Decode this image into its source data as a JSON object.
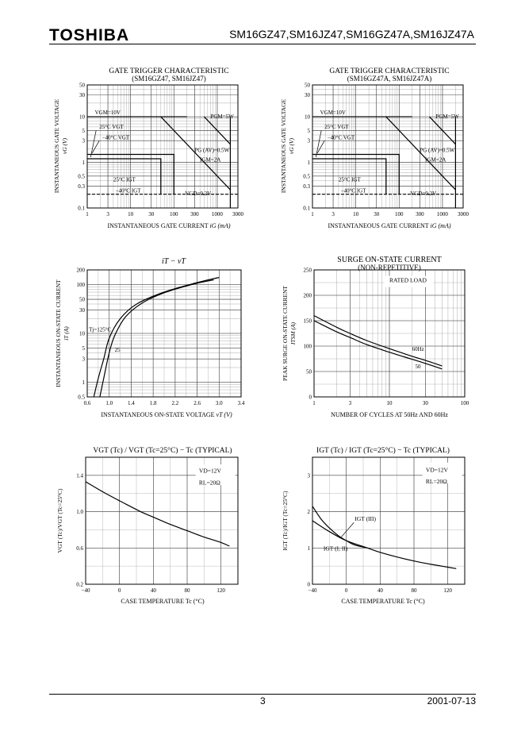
{
  "header": {
    "logo": "TOSHIBA",
    "part_numbers": "SM16GZ47,SM16JZ47,SM16GZ47A,SM16JZ47A"
  },
  "footer": {
    "page_number": "3",
    "date": "2001-07-13"
  },
  "chart_data": [
    {
      "id": "gt1",
      "type": "line",
      "title": "GATE TRIGGER CHARACTERISTIC",
      "subtitle": "(SM16GZ47, SM16JZ47)",
      "xlabel": "INSTANTANEOUS GATE CURRENT",
      "xunit": "iG (mA)",
      "ylabel": "INSTANTANEOUS GATE VOLTAGE",
      "yunit": "vG (V)",
      "xscale": "log",
      "yscale": "log",
      "xlim": [
        1,
        3000
      ],
      "ylim": [
        0.1,
        50
      ],
      "xticks": [
        1,
        3,
        10,
        30,
        100,
        300,
        1000,
        3000
      ],
      "xtick_labels": [
        "1",
        "3",
        "10",
        "30",
        "100",
        "300",
        "1000",
        "3000"
      ],
      "yticks": [
        0.1,
        0.3,
        0.5,
        1,
        3,
        5,
        10,
        30,
        50
      ],
      "ytick_labels": [
        "0.1",
        "0.3",
        "0.5",
        "1",
        "3",
        "5",
        "10",
        "30",
        "50"
      ],
      "annotations": {
        "vgm": "VGM=10V",
        "pgm": "PGM=5W",
        "vgt25": "25°C VGT",
        "vgt40": "−40°C VGT",
        "pgav": "PG (AV)=0.5W",
        "igm": "IGM=2A",
        "igt25": "25°C IGT",
        "igt40": "−40°C IGT",
        "vgd": "VGD=0.2V"
      }
    },
    {
      "id": "gt2",
      "type": "line",
      "title": "GATE TRIGGER CHARACTERISTIC",
      "subtitle": "(SM16GZ47A, SM16JZ47A)",
      "xlabel": "INSTANTANEOUS GATE CURRENT",
      "xunit": "iG (mA)",
      "ylabel": "INSTANTANEOUS GATE VOLTAGE",
      "yunit": "vG (V)",
      "xscale": "log",
      "yscale": "log",
      "xlim": [
        1,
        3000
      ],
      "ylim": [
        0.1,
        50
      ],
      "xticks": [
        1,
        3,
        10,
        30,
        100,
        300,
        1000,
        3000
      ],
      "xtick_labels": [
        "1",
        "3",
        "10",
        "30",
        "100",
        "300",
        "1000",
        "3000"
      ],
      "yticks": [
        0.1,
        0.3,
        0.5,
        1,
        3,
        5,
        10,
        30,
        50
      ],
      "ytick_labels": [
        "0.1",
        "0.3",
        "0.5",
        "1",
        "3",
        "5",
        "10",
        "30",
        "50"
      ],
      "annotations": {
        "vgm": "VGM=10V",
        "pgm": "PGM=5W",
        "vgt25": "25°C VGT",
        "vgt40": "−40°C VGT",
        "pgav": "PG (AV)=0.5W",
        "igm": "IGM=2A",
        "igt25": "25°C IGT",
        "igt40": "−40°C IGT",
        "vgd": "VGD=0.2V"
      }
    },
    {
      "id": "iv",
      "type": "line",
      "title": "iT − vT",
      "xlabel": "INSTANTANEOUS ON-STATE VOLTAGE",
      "xunit": "vT (V)",
      "ylabel": "INSTANTANEOUS ON-STATE CURRENT",
      "yunit": "iT (A)",
      "xscale": "linear",
      "yscale": "log",
      "xlim": [
        0.6,
        3.4
      ],
      "ylim": [
        0.5,
        200
      ],
      "xticks": [
        0.6,
        1.0,
        1.4,
        1.8,
        2.2,
        2.6,
        3.0,
        3.4
      ],
      "xtick_labels": [
        "0.6",
        "1.0",
        "1.4",
        "1.8",
        "2.2",
        "2.6",
        "3.0",
        "3.4"
      ],
      "yticks": [
        0.5,
        1,
        3,
        5,
        10,
        30,
        50,
        100,
        200
      ],
      "ytick_labels": [
        "0.5",
        "1",
        "3",
        "5",
        "10",
        "30",
        "50",
        "100",
        "200"
      ],
      "series": [
        {
          "name": "Tj=125°C",
          "label": "Tj=125°C",
          "x": [
            0.72,
            0.8,
            0.9,
            1.0,
            1.2,
            1.5,
            2.0,
            2.6,
            3.0
          ],
          "y": [
            0.5,
            1.2,
            3,
            8,
            20,
            40,
            70,
            110,
            140
          ]
        },
        {
          "name": "25",
          "label": "25",
          "x": [
            0.83,
            0.9,
            1.0,
            1.1,
            1.3,
            1.6,
            2.0,
            2.5,
            2.9
          ],
          "y": [
            0.5,
            1.2,
            4,
            9,
            22,
            42,
            68,
            100,
            125
          ]
        }
      ]
    },
    {
      "id": "surge",
      "type": "line",
      "title": "SURGE ON-STATE CURRENT",
      "subtitle": "(NON-REPETITIVE)",
      "xlabel": "NUMBER OF CYCLES AT 50Hz AND 60Hz",
      "ylabel": "PEAK SURGE ON-STATE CURRENT",
      "yunit": "ITSM (A)",
      "legend_text": "RATED LOAD",
      "xscale": "log",
      "yscale": "linear",
      "xlim": [
        1,
        100
      ],
      "ylim": [
        0,
        250
      ],
      "xticks": [
        1,
        3,
        10,
        30,
        100
      ],
      "xtick_labels": [
        "1",
        "3",
        "10",
        "30",
        "100"
      ],
      "yticks": [
        0,
        50,
        100,
        150,
        200,
        250
      ],
      "ytick_labels": [
        "0",
        "50",
        "100",
        "150",
        "200",
        "250"
      ],
      "series": [
        {
          "name": "60Hz",
          "label": "60Hz",
          "x": [
            1,
            2,
            3,
            5,
            10,
            20,
            30,
            50
          ],
          "y": [
            160,
            137,
            125,
            111,
            95,
            80,
            72,
            61
          ]
        },
        {
          "name": "50",
          "label": "50",
          "x": [
            1,
            2,
            3,
            5,
            10,
            20,
            30,
            50
          ],
          "y": [
            150,
            128,
            117,
            103,
            88,
            74,
            66,
            55
          ]
        }
      ]
    },
    {
      "id": "vgt",
      "type": "line",
      "title": "VGT (Tc) / VGT (Tc=25°C) − Tc (TYPICAL)",
      "xlabel": "CASE TEMPERATURE",
      "xunit": "Tc (°C)",
      "ylabel": "VGT (Tc)/VGT (Tc=25°C)",
      "legend_lines": [
        "VD=12V",
        "RL=20Ω"
      ],
      "xscale": "linear",
      "yscale": "linear",
      "xlim": [
        -40,
        140
      ],
      "ylim": [
        0.2,
        1.6
      ],
      "xticks": [
        -40,
        0,
        40,
        80,
        120
      ],
      "xtick_labels": [
        "−40",
        "0",
        "40",
        "80",
        "120"
      ],
      "yticks": [
        0.2,
        0.6,
        1.0,
        1.4
      ],
      "ytick_labels": [
        "0.2",
        "0.6",
        "1.0",
        "1.4"
      ],
      "series": [
        {
          "name": "VGT",
          "label": "",
          "x": [
            -40,
            -20,
            0,
            25,
            40,
            60,
            80,
            100,
            120,
            130
          ],
          "y": [
            1.33,
            1.22,
            1.12,
            1.0,
            0.94,
            0.86,
            0.79,
            0.72,
            0.66,
            0.62
          ]
        }
      ]
    },
    {
      "id": "igt",
      "type": "line",
      "title": "IGT (Tc) / IGT (Tc=25°C) − Tc (TYPICAL)",
      "xlabel": "CASE TEMPERATURE",
      "xunit": "Tc (°C)",
      "ylabel": "IGT (Tc)/IGT (Tc=25°C)",
      "legend_lines": [
        "VD=12V",
        "RL=20Ω"
      ],
      "xscale": "linear",
      "yscale": "linear",
      "xlim": [
        -40,
        140
      ],
      "ylim": [
        0,
        3.5
      ],
      "xticks": [
        -40,
        0,
        40,
        80,
        120
      ],
      "xtick_labels": [
        "−40",
        "0",
        "40",
        "80",
        "120"
      ],
      "yticks": [
        0,
        1,
        2,
        3
      ],
      "ytick_labels": [
        "0",
        "1",
        "2",
        "3"
      ],
      "series": [
        {
          "name": "IGT (III)",
          "label": "IGT (III)",
          "x": [
            -40,
            -30,
            -20,
            -10,
            0,
            10,
            25
          ],
          "y": [
            2.15,
            1.8,
            1.55,
            1.35,
            1.2,
            1.08,
            1.0
          ]
        },
        {
          "name": "IGT (I, II)",
          "label": "IGT (I, II)",
          "x": [
            -40,
            -20,
            0,
            25,
            40,
            60,
            80,
            100,
            120,
            130
          ],
          "y": [
            1.75,
            1.45,
            1.2,
            1.0,
            0.88,
            0.75,
            0.64,
            0.55,
            0.47,
            0.43
          ]
        }
      ]
    }
  ]
}
